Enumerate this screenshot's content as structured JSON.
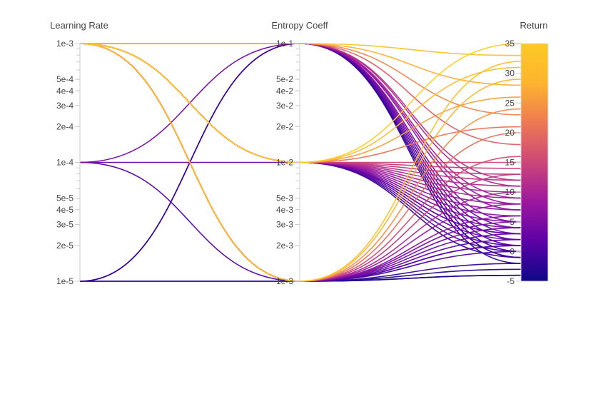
{
  "chart_data": {
    "type": "parallel-coordinates",
    "color_scale": {
      "name": "plasma",
      "axis": "Return",
      "stops": [
        "#0d0887",
        "#46039f",
        "#7201a8",
        "#9c179e",
        "#bd3786",
        "#d8576b",
        "#ed7953",
        "#fb9f3a",
        "#fdca26",
        "#f0f921"
      ],
      "colorbar_stops": [
        "#0d0887",
        "#5c01a6",
        "#9c179e",
        "#cc4778",
        "#ed7953",
        "#fdb42f",
        "#fdca26"
      ]
    },
    "axes": [
      {
        "title": "Learning Rate",
        "scale": "log",
        "range": [
          1e-05,
          0.001
        ],
        "ticks": [
          {
            "v": 0.001,
            "label": "1e-3"
          },
          {
            "v": 0.0005,
            "label": "5e-4"
          },
          {
            "v": 0.0004,
            "label": "4e-4"
          },
          {
            "v": 0.0003,
            "label": "3e-4"
          },
          {
            "v": 0.0002,
            "label": "2e-4"
          },
          {
            "v": 0.0001,
            "label": "1e-4"
          },
          {
            "v": 5e-05,
            "label": "5e-5"
          },
          {
            "v": 4e-05,
            "label": "4e-5"
          },
          {
            "v": 3e-05,
            "label": "3e-5"
          },
          {
            "v": 2e-05,
            "label": "2e-5"
          },
          {
            "v": 1e-05,
            "label": "1e-5"
          }
        ]
      },
      {
        "title": "Entropy Coeff",
        "scale": "log",
        "range": [
          0.001,
          0.1
        ],
        "ticks": [
          {
            "v": 0.1,
            "label": "1e-1"
          },
          {
            "v": 0.05,
            "label": "5e-2"
          },
          {
            "v": 0.04,
            "label": "4e-2"
          },
          {
            "v": 0.03,
            "label": "3e-2"
          },
          {
            "v": 0.02,
            "label": "2e-2"
          },
          {
            "v": 0.01,
            "label": "1e-2"
          },
          {
            "v": 0.005,
            "label": "5e-3"
          },
          {
            "v": 0.004,
            "label": "4e-3"
          },
          {
            "v": 0.003,
            "label": "3e-3"
          },
          {
            "v": 0.002,
            "label": "2e-3"
          },
          {
            "v": 0.001,
            "label": "1e-3"
          }
        ]
      },
      {
        "title": "Return",
        "scale": "linear",
        "range": [
          -5,
          35
        ],
        "ticks": [
          {
            "v": 35,
            "label": "35"
          },
          {
            "v": 30,
            "label": "30"
          },
          {
            "v": 25,
            "label": "25"
          },
          {
            "v": 20,
            "label": "20"
          },
          {
            "v": 15,
            "label": "15"
          },
          {
            "v": 10,
            "label": "10"
          },
          {
            "v": 5,
            "label": "5"
          },
          {
            "v": 0,
            "label": "0"
          },
          {
            "v": -5,
            "label": "-5"
          }
        ]
      }
    ],
    "runs": [
      {
        "lr": 0.001,
        "ent": 0.01,
        "ret": 13
      },
      {
        "lr": 0.001,
        "ent": 0.01,
        "ret": 12
      },
      {
        "lr": 0.001,
        "ent": 0.01,
        "ret": 11
      },
      {
        "lr": 0.001,
        "ent": 0.01,
        "ret": 15
      },
      {
        "lr": 0.001,
        "ent": 0.01,
        "ret": 6
      },
      {
        "lr": 0.001,
        "ent": 0.01,
        "ret": 4
      },
      {
        "lr": 0.001,
        "ent": 0.01,
        "ret": 3
      },
      {
        "lr": 0.001,
        "ent": 0.01,
        "ret": 2
      },
      {
        "lr": 0.001,
        "ent": 0.01,
        "ret": 1
      },
      {
        "lr": 0.001,
        "ent": 0.01,
        "ret": 5
      },
      {
        "lr": 0.001,
        "ent": 0.1,
        "ret": 7
      },
      {
        "lr": 0.001,
        "ent": 0.1,
        "ret": 8
      },
      {
        "lr": 0.001,
        "ent": 0.001,
        "ret": 6
      },
      {
        "lr": 0.0001,
        "ent": 0.1,
        "ret": 4
      },
      {
        "lr": 0.0001,
        "ent": 0.01,
        "ret": 3
      },
      {
        "lr": 0.0001,
        "ent": 0.001,
        "ret": 1
      },
      {
        "lr": 1e-05,
        "ent": 0.1,
        "ret": -2
      },
      {
        "lr": 1e-05,
        "ent": 0.1,
        "ret": -1
      },
      {
        "lr": 1e-05,
        "ent": 0.001,
        "ret": -3
      },
      {
        "lr": 1e-05,
        "ent": 0.001,
        "ret": -4
      },
      {
        "lr": 0.001,
        "ent": 0.1,
        "ret": 33
      },
      {
        "lr": 0.001,
        "ent": 0.1,
        "ret": 28
      },
      {
        "lr": 0.001,
        "ent": 0.1,
        "ret": 23
      },
      {
        "lr": 0.001,
        "ent": 0.1,
        "ret": 18
      },
      {
        "lr": 0.001,
        "ent": 0.1,
        "ret": 12
      },
      {
        "lr": 0.001,
        "ent": 0.1,
        "ret": 3
      },
      {
        "lr": 0.001,
        "ent": 0.1,
        "ret": 2
      },
      {
        "lr": 0.001,
        "ent": 0.1,
        "ret": 1
      },
      {
        "lr": 0.001,
        "ent": 0.1,
        "ret": 0
      },
      {
        "lr": 0.001,
        "ent": 0.1,
        "ret": -1
      },
      {
        "lr": 0.001,
        "ent": 0.1,
        "ret": 5
      },
      {
        "lr": 0.001,
        "ent": 0.1,
        "ret": 9
      },
      {
        "lr": 0.001,
        "ent": 0.1,
        "ret": 11
      },
      {
        "lr": 0.001,
        "ent": 0.01,
        "ret": 35
      },
      {
        "lr": 0.001,
        "ent": 0.01,
        "ret": 31
      },
      {
        "lr": 0.001,
        "ent": 0.01,
        "ret": 26
      },
      {
        "lr": 0.001,
        "ent": 0.01,
        "ret": 21
      },
      {
        "lr": 0.001,
        "ent": 0.01,
        "ret": 10
      },
      {
        "lr": 0.001,
        "ent": 0.01,
        "ret": 9
      },
      {
        "lr": 0.001,
        "ent": 0.01,
        "ret": 8
      },
      {
        "lr": 0.001,
        "ent": 0.01,
        "ret": 7
      },
      {
        "lr": 0.001,
        "ent": 0.01,
        "ret": 0
      },
      {
        "lr": 0.001,
        "ent": 0.01,
        "ret": -1
      },
      {
        "lr": 0.001,
        "ent": 0.01,
        "ret": 14
      },
      {
        "lr": 0.001,
        "ent": 0.001,
        "ret": 32
      },
      {
        "lr": 0.001,
        "ent": 0.001,
        "ret": 29
      },
      {
        "lr": 0.001,
        "ent": 0.001,
        "ret": 24
      },
      {
        "lr": 0.001,
        "ent": 0.001,
        "ret": 20
      },
      {
        "lr": 0.001,
        "ent": 0.001,
        "ret": 16
      },
      {
        "lr": 0.001,
        "ent": 0.001,
        "ret": 13
      },
      {
        "lr": 0.001,
        "ent": 0.001,
        "ret": 10
      },
      {
        "lr": 0.001,
        "ent": 0.001,
        "ret": 8
      },
      {
        "lr": 0.001,
        "ent": 0.001,
        "ret": 4
      },
      {
        "lr": 0.001,
        "ent": 0.001,
        "ret": 2
      },
      {
        "lr": 0.001,
        "ent": 0.001,
        "ret": 1
      },
      {
        "lr": 0.001,
        "ent": 0.001,
        "ret": 0
      },
      {
        "lr": 0.001,
        "ent": 0.001,
        "ret": -2
      },
      {
        "lr": 0.001,
        "ent": 0.001,
        "ret": -4
      },
      {
        "lr": 0.001,
        "ent": 0.001,
        "ret": 5
      },
      {
        "lr": 0.001,
        "ent": 0.001,
        "ret": 3
      }
    ]
  }
}
